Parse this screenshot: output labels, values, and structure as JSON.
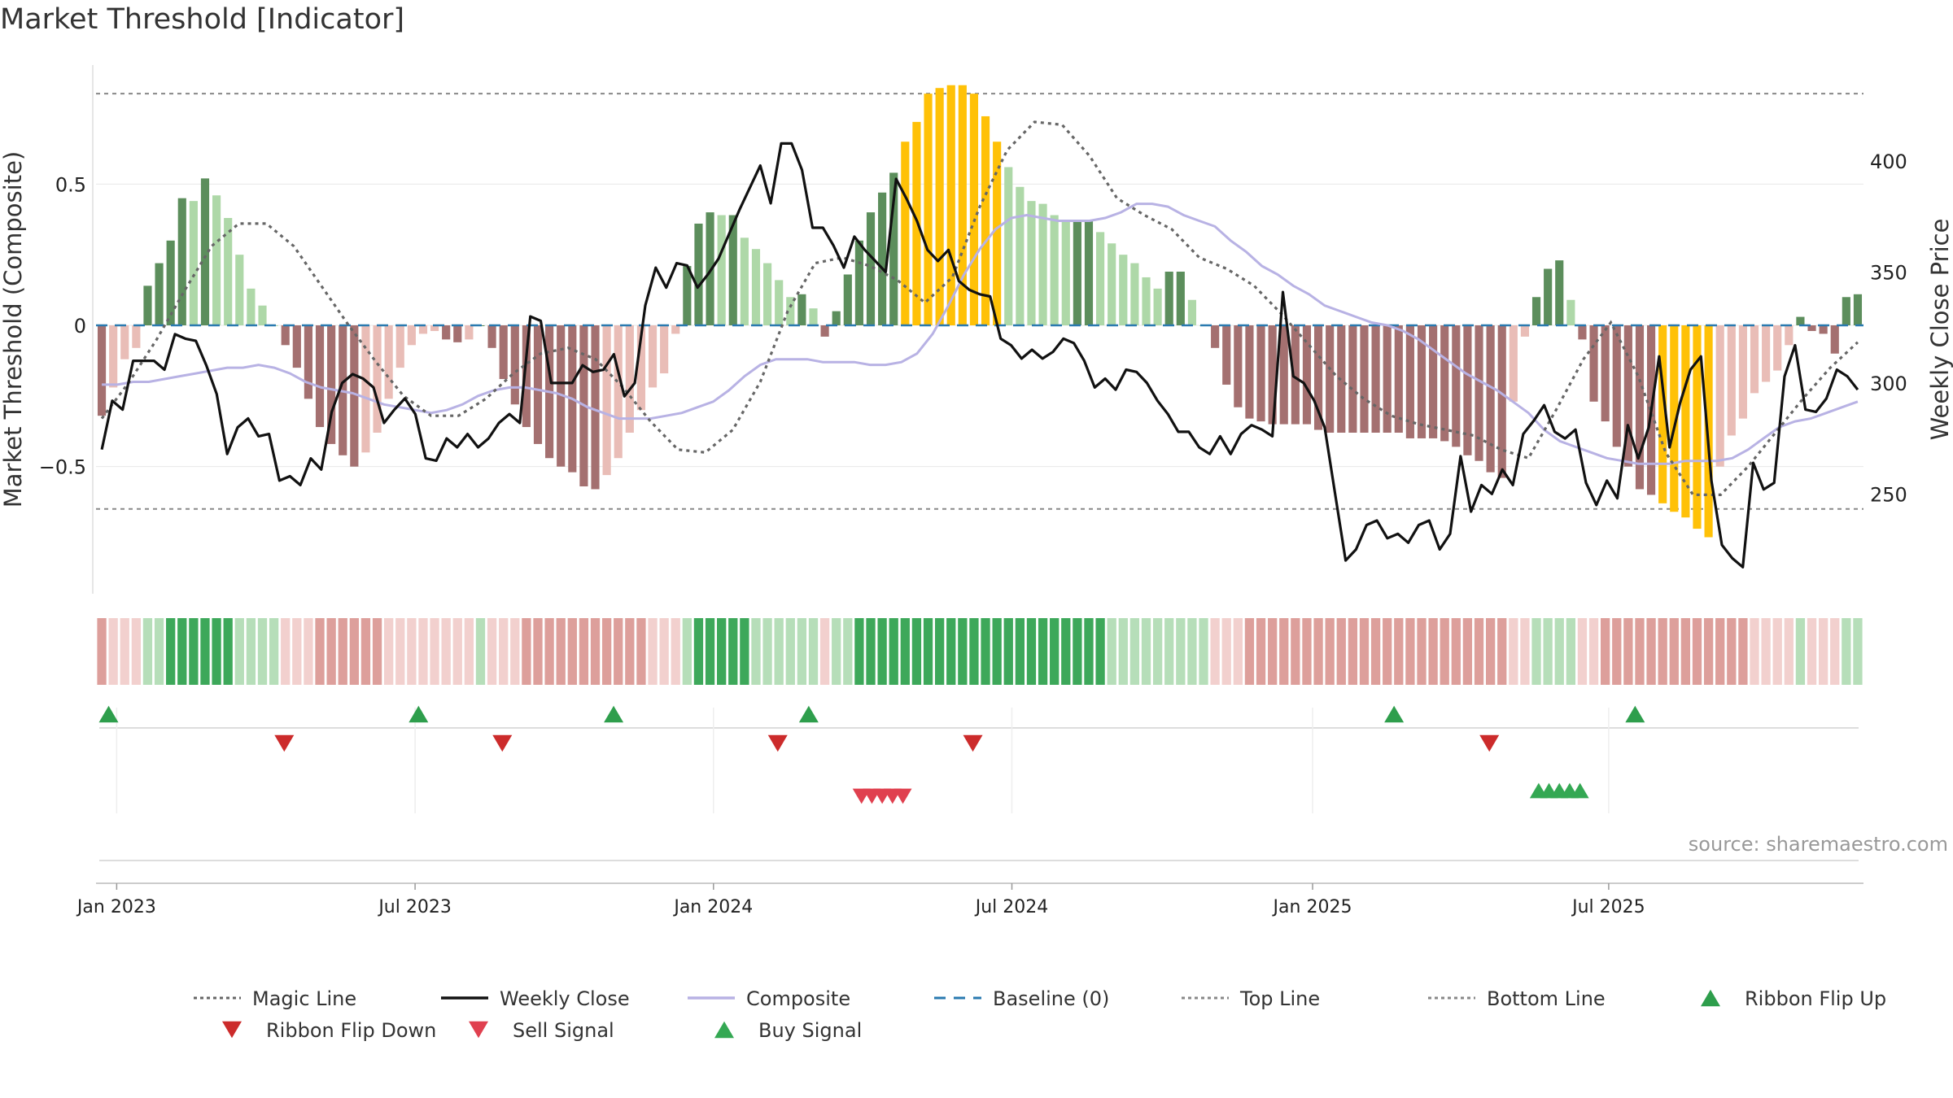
{
  "chart_data": {
    "type": "bar",
    "title": "Market Threshold [Indicator]",
    "ylabel_left": "Market Threshold (Composite)",
    "ylabel_right": "Weekly Close Price",
    "y_ticks_left": [
      {
        "value": 0.5,
        "label": "0.5"
      },
      {
        "value": 0,
        "label": "0"
      },
      {
        "value": -0.5,
        "label": "−0.5"
      }
    ],
    "y_ticks_right": [
      {
        "value": 400,
        "label": "400"
      },
      {
        "value": 350,
        "label": "350"
      },
      {
        "value": 300,
        "label": "300"
      },
      {
        "value": 250,
        "label": "250"
      }
    ],
    "ylim_left": [
      -0.95,
      0.95
    ],
    "ylim_right": [
      205,
      447
    ],
    "x_ticks": [
      {
        "index": 1.3,
        "label": "Jan 2023"
      },
      {
        "index": 27.3,
        "label": "Jul 2023"
      },
      {
        "index": 53.3,
        "label": "Jan 2024"
      },
      {
        "index": 79.3,
        "label": "Jul 2024"
      },
      {
        "index": 105.5,
        "label": "Jan 2025"
      },
      {
        "index": 131.3,
        "label": "Jul 2025"
      }
    ],
    "top_line": 0.82,
    "bottom_line": -0.65,
    "baseline": 0,
    "composite_bars": [
      -0.32,
      -0.22,
      -0.12,
      -0.08,
      0.14,
      0.22,
      0.3,
      0.45,
      0.44,
      0.52,
      0.46,
      0.38,
      0.25,
      0.13,
      0.07,
      0,
      -0.07,
      -0.15,
      -0.26,
      -0.36,
      -0.42,
      -0.46,
      -0.5,
      -0.45,
      -0.38,
      -0.26,
      -0.15,
      -0.07,
      -0.03,
      -0.02,
      -0.05,
      -0.06,
      -0.05,
      0,
      -0.08,
      -0.19,
      -0.28,
      -0.36,
      -0.42,
      -0.47,
      -0.5,
      -0.52,
      -0.57,
      -0.58,
      -0.53,
      -0.47,
      -0.38,
      -0.3,
      -0.22,
      -0.17,
      -0.03,
      0.21,
      0.36,
      0.4,
      0.39,
      0.39,
      0.31,
      0.27,
      0.22,
      0.16,
      0.1,
      0.11,
      0.06,
      -0.04,
      0.05,
      0.18,
      0.3,
      0.4,
      0.47,
      0.54,
      0.65,
      0.72,
      0.82,
      0.84,
      0.85,
      0.85,
      0.82,
      0.74,
      0.65,
      0.56,
      0.49,
      0.44,
      0.43,
      0.39,
      0.37,
      0.37,
      0.37,
      0.33,
      0.29,
      0.25,
      0.22,
      0.17,
      0.13,
      0.19,
      0.19,
      0.09,
      0,
      -0.08,
      -0.21,
      -0.29,
      -0.33,
      -0.34,
      -0.35,
      -0.35,
      -0.35,
      -0.35,
      -0.37,
      -0.38,
      -0.38,
      -0.38,
      -0.38,
      -0.38,
      -0.38,
      -0.38,
      -0.4,
      -0.4,
      -0.4,
      -0.41,
      -0.43,
      -0.46,
      -0.48,
      -0.52,
      -0.54,
      -0.27,
      -0.04,
      0.1,
      0.2,
      0.23,
      0.09,
      -0.05,
      -0.27,
      -0.34,
      -0.43,
      -0.5,
      -0.58,
      -0.6,
      -0.63,
      -0.66,
      -0.68,
      -0.72,
      -0.75,
      -0.5,
      -0.39,
      -0.33,
      -0.24,
      -0.2,
      -0.16,
      -0.07,
      0.03,
      -0.02,
      -0.03,
      -0.1,
      0.1,
      0.11
    ],
    "weekly_close": [
      270,
      292,
      288,
      310,
      310,
      310,
      306,
      322,
      320,
      319,
      308,
      295,
      268,
      280,
      284,
      276,
      277,
      256,
      258,
      254,
      266,
      261,
      287,
      300,
      304,
      302,
      298,
      282,
      288,
      293,
      286,
      266,
      265,
      275,
      271,
      277,
      271,
      275,
      282,
      286,
      282,
      330,
      328,
      300,
      300,
      300,
      308,
      305,
      306,
      313,
      294,
      300,
      335,
      352,
      343,
      354,
      353,
      343,
      349,
      356,
      367,
      378,
      388,
      398,
      381,
      408,
      408,
      396,
      370,
      370,
      362,
      352,
      366,
      360,
      355,
      350,
      392,
      383,
      373,
      360,
      355,
      360,
      346,
      342,
      340,
      339,
      320,
      317,
      311,
      315,
      311,
      314,
      320,
      318,
      310,
      298,
      302,
      297,
      306,
      305,
      300,
      292,
      286,
      278,
      278,
      271,
      268,
      276,
      268,
      277,
      281,
      279,
      276,
      341,
      303,
      300,
      292,
      280,
      250,
      220,
      225,
      236,
      238,
      230,
      232,
      228,
      236,
      238,
      225,
      232,
      267,
      242,
      254,
      250,
      261,
      254,
      277,
      283,
      290,
      278,
      275,
      279,
      255,
      245,
      256,
      248,
      281,
      266,
      280,
      312,
      271,
      291,
      306,
      312,
      256,
      227,
      221,
      217,
      264,
      252,
      255,
      303,
      317,
      288,
      287,
      293,
      306,
      303,
      297
    ],
    "composite_line": [
      -0.21,
      -0.21,
      -0.2,
      -0.2,
      -0.19,
      -0.18,
      -0.17,
      -0.16,
      -0.15,
      -0.15,
      -0.14,
      -0.15,
      -0.17,
      -0.2,
      -0.22,
      -0.23,
      -0.24,
      -0.26,
      -0.28,
      -0.29,
      -0.3,
      -0.31,
      -0.3,
      -0.28,
      -0.25,
      -0.23,
      -0.22,
      -0.22,
      -0.23,
      -0.24,
      -0.26,
      -0.29,
      -0.31,
      -0.33,
      -0.33,
      -0.33,
      -0.32,
      -0.31,
      -0.29,
      -0.27,
      -0.23,
      -0.18,
      -0.14,
      -0.12,
      -0.12,
      -0.12,
      -0.13,
      -0.13,
      -0.13,
      -0.14,
      -0.14,
      -0.13,
      -0.1,
      -0.03,
      0.07,
      0.18,
      0.27,
      0.34,
      0.38,
      0.39,
      0.38,
      0.37,
      0.37,
      0.37,
      0.38,
      0.4,
      0.43,
      0.43,
      0.42,
      0.39,
      0.37,
      0.35,
      0.3,
      0.26,
      0.21,
      0.18,
      0.14,
      0.11,
      0.07,
      0.05,
      0.03,
      0.01,
      0,
      -0.02,
      -0.05,
      -0.09,
      -0.13,
      -0.17,
      -0.2,
      -0.23,
      -0.27,
      -0.31,
      -0.37,
      -0.41,
      -0.43,
      -0.45,
      -0.47,
      -0.48,
      -0.49,
      -0.49,
      -0.49,
      -0.48,
      -0.48,
      -0.48,
      -0.47,
      -0.44,
      -0.4,
      -0.36,
      -0.34,
      -0.33,
      -0.31,
      -0.29,
      -0.27
    ],
    "magic_line": [
      -0.33,
      -0.2,
      -0.05,
      0.12,
      0.28,
      0.36,
      0.36,
      0.28,
      0.14,
      0,
      -0.13,
      -0.25,
      -0.32,
      -0.32,
      -0.26,
      -0.17,
      -0.1,
      -0.08,
      -0.12,
      -0.22,
      -0.34,
      -0.44,
      -0.45,
      -0.37,
      -0.2,
      0.05,
      0.22,
      0.24,
      0.21,
      0.16,
      0.08,
      0.17,
      0.42,
      0.62,
      0.72,
      0.71,
      0.6,
      0.45,
      0.39,
      0.34,
      0.24,
      0.2,
      0.14,
      0.04,
      -0.07,
      -0.18,
      -0.26,
      -0.32,
      -0.35,
      -0.37,
      -0.39,
      -0.44,
      -0.47,
      -0.3,
      -0.12,
      0.01,
      -0.18,
      -0.45,
      -0.6,
      -0.6,
      -0.5,
      -0.38,
      -0.26,
      -0.15,
      -0.06
    ],
    "series_legend": [
      {
        "name": "Magic Line",
        "symbol": "dotted",
        "color": "#666666"
      },
      {
        "name": "Weekly Close",
        "symbol": "line",
        "color": "#111111"
      },
      {
        "name": "Composite",
        "symbol": "line",
        "color": "#b8b2e4"
      },
      {
        "name": "Baseline (0)",
        "symbol": "dashed",
        "color": "#2a7ab0"
      },
      {
        "name": "Top Line",
        "symbol": "dotted",
        "color": "#888888"
      },
      {
        "name": "Bottom Line",
        "symbol": "dotted",
        "color": "#888888"
      },
      {
        "name": "Ribbon Flip Up",
        "symbol": "tri-up",
        "color": "#2e9e4c"
      },
      {
        "name": "Ribbon Flip Down",
        "symbol": "tri-down",
        "color": "#cc2b2b"
      },
      {
        "name": "Sell Signal",
        "symbol": "tri-down",
        "color": "#e0404f"
      },
      {
        "name": "Buy Signal",
        "symbol": "tri-up",
        "color": "#34a853"
      }
    ],
    "ribbon_flip_up_at": [
      0.6,
      27.6,
      44.6,
      61.6,
      112.6,
      133.6
    ],
    "ribbon_flip_down_at": [
      15.9,
      34.9,
      58.9,
      75.9,
      120.9
    ],
    "sell_signal_at": [
      66.2,
      67.1,
      68,
      68.9,
      69.8
    ],
    "buy_signal_at": [
      125.2,
      126.1,
      127,
      127.9,
      128.8
    ],
    "colors": {
      "up_strong": "#5c8e5c",
      "up_light": "#aed8a8",
      "down_strong": "#a47070",
      "down_light": "#e9bdb7",
      "extreme": "#ffc107",
      "ribbon_green_dark": "#3da85a",
      "ribbon_green_light": "#b6deb9",
      "ribbon_red_dark": "#dd9f9b",
      "ribbon_red_light": "#f2d0ce"
    }
  },
  "source_text": "source: sharemaestro.com"
}
